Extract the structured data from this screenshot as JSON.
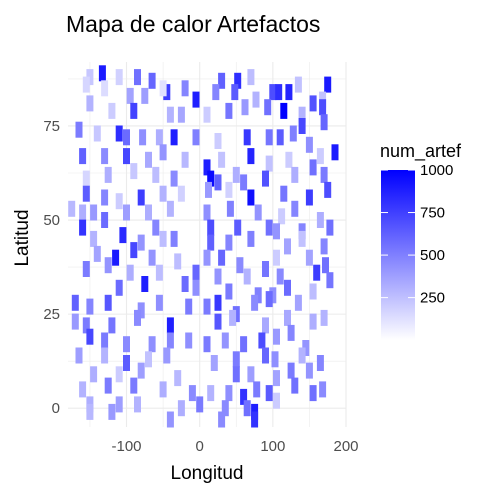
{
  "chart_data": {
    "type": "heatmap",
    "title": "Mapa de calor Artefactos",
    "xlabel": "Longitud",
    "ylabel": "Latitud",
    "xlim": [
      -180,
      200
    ],
    "ylim": [
      -5,
      92
    ],
    "xticks": [
      -100,
      0,
      100,
      200
    ],
    "yticks": [
      0,
      25,
      50,
      75
    ],
    "xtick_labels": [
      "-100",
      "0",
      "100",
      "200"
    ],
    "ytick_labels": [
      "0",
      "25",
      "50",
      "75"
    ],
    "grid": true,
    "legend": {
      "title": "num_artef",
      "position": "right",
      "min": 1,
      "max": 1000,
      "ticks": [
        250,
        500,
        750,
        1000
      ],
      "tick_labels": [
        "250",
        "500",
        "750",
        "1000"
      ],
      "low_color": "#ffffff",
      "high_color": "#0000ff"
    },
    "points": [
      [
        -150,
        88,
        220
      ],
      [
        -133,
        89,
        900
      ],
      [
        -110,
        88,
        180
      ],
      [
        -85,
        88,
        560
      ],
      [
        -65,
        87,
        600
      ],
      [
        -45,
        84,
        760
      ],
      [
        30,
        87,
        620
      ],
      [
        52,
        87,
        820
      ],
      [
        70,
        88,
        260
      ],
      [
        100,
        84,
        700
      ],
      [
        135,
        86,
        240
      ],
      [
        175,
        86,
        900
      ],
      [
        -155,
        86,
        160
      ],
      [
        -130,
        85,
        140
      ],
      [
        -95,
        83,
        360
      ],
      [
        -75,
        83,
        380
      ],
      [
        -50,
        85,
        120
      ],
      [
        -20,
        85,
        480
      ],
      [
        -5,
        82,
        880
      ],
      [
        22,
        84,
        480
      ],
      [
        48,
        84,
        640
      ],
      [
        77,
        82,
        300
      ],
      [
        93,
        80,
        560
      ],
      [
        108,
        84,
        820
      ],
      [
        122,
        84,
        860
      ],
      [
        155,
        81,
        680
      ],
      [
        168,
        82,
        240
      ],
      [
        168,
        80,
        700
      ],
      [
        -150,
        81,
        300
      ],
      [
        -120,
        79,
        200
      ],
      [
        -90,
        79,
        740
      ],
      [
        -40,
        78,
        300
      ],
      [
        -25,
        78,
        350
      ],
      [
        10,
        78,
        200
      ],
      [
        40,
        79,
        540
      ],
      [
        62,
        80,
        400
      ],
      [
        115,
        79,
        1000
      ],
      [
        140,
        78,
        300
      ],
      [
        170,
        76,
        600
      ],
      [
        140,
        75,
        720
      ],
      [
        -165,
        74,
        520
      ],
      [
        -140,
        73,
        220
      ],
      [
        -110,
        73,
        820
      ],
      [
        -100,
        72,
        580
      ],
      [
        -78,
        72,
        440
      ],
      [
        -55,
        72,
        320
      ],
      [
        -35,
        72,
        880
      ],
      [
        -5,
        72,
        500
      ],
      [
        25,
        71,
        200
      ],
      [
        65,
        72,
        780
      ],
      [
        95,
        72,
        540
      ],
      [
        110,
        72,
        640
      ],
      [
        128,
        73,
        500
      ],
      [
        150,
        70,
        440
      ],
      [
        185,
        68,
        900
      ],
      [
        -160,
        67,
        620
      ],
      [
        -130,
        67,
        460
      ],
      [
        -100,
        67,
        720
      ],
      [
        -70,
        66,
        340
      ],
      [
        -50,
        68,
        420
      ],
      [
        -20,
        66,
        280
      ],
      [
        10,
        64,
        880
      ],
      [
        30,
        66,
        240
      ],
      [
        70,
        67,
        860
      ],
      [
        95,
        65,
        240
      ],
      [
        122,
        66,
        200
      ],
      [
        155,
        64,
        560
      ],
      [
        165,
        67,
        200
      ],
      [
        -155,
        61,
        160
      ],
      [
        -125,
        62,
        320
      ],
      [
        -90,
        63,
        220
      ],
      [
        -60,
        62,
        260
      ],
      [
        -35,
        61,
        460
      ],
      [
        15,
        61,
        960
      ],
      [
        25,
        60,
        620
      ],
      [
        50,
        62,
        320
      ],
      [
        60,
        60,
        520
      ],
      [
        90,
        61,
        680
      ],
      [
        130,
        62,
        320
      ],
      [
        170,
        62,
        520
      ],
      [
        -155,
        57,
        640
      ],
      [
        -130,
        56,
        480
      ],
      [
        -110,
        55,
        200
      ],
      [
        -80,
        56,
        760
      ],
      [
        -50,
        57,
        300
      ],
      [
        -25,
        57,
        180
      ],
      [
        12,
        58,
        400
      ],
      [
        40,
        58,
        180
      ],
      [
        70,
        56,
        940
      ],
      [
        115,
        57,
        540
      ],
      [
        150,
        56,
        760
      ],
      [
        175,
        58,
        700
      ],
      [
        -175,
        53,
        280
      ],
      [
        -160,
        52,
        320
      ],
      [
        -145,
        52,
        400
      ],
      [
        -100,
        52,
        380
      ],
      [
        -70,
        52,
        320
      ],
      [
        -40,
        53,
        300
      ],
      [
        10,
        52,
        440
      ],
      [
        42,
        53,
        500
      ],
      [
        80,
        52,
        420
      ],
      [
        112,
        51,
        200
      ],
      [
        130,
        53,
        480
      ],
      [
        165,
        50,
        320
      ],
      [
        -160,
        48,
        800
      ],
      [
        -130,
        50,
        580
      ],
      [
        -60,
        48,
        480
      ],
      [
        15,
        48,
        700
      ],
      [
        52,
        48,
        640
      ],
      [
        95,
        48,
        560
      ],
      [
        105,
        47,
        420
      ],
      [
        140,
        47,
        480
      ],
      [
        178,
        48,
        560
      ],
      [
        -145,
        45,
        300
      ],
      [
        -105,
        46,
        840
      ],
      [
        -80,
        44,
        420
      ],
      [
        -50,
        45,
        260
      ],
      [
        -35,
        45,
        500
      ],
      [
        15,
        44,
        620
      ],
      [
        40,
        44,
        480
      ],
      [
        70,
        45,
        500
      ],
      [
        120,
        43,
        360
      ],
      [
        140,
        45,
        240
      ],
      [
        170,
        43,
        480
      ],
      [
        -140,
        41,
        360
      ],
      [
        -115,
        40,
        900
      ],
      [
        -90,
        42,
        720
      ],
      [
        -65,
        40,
        420
      ],
      [
        -30,
        39,
        260
      ],
      [
        10,
        40,
        420
      ],
      [
        30,
        40,
        600
      ],
      [
        55,
        38,
        460
      ],
      [
        105,
        40,
        200
      ],
      [
        150,
        40,
        360
      ],
      [
        172,
        38,
        560
      ],
      [
        -155,
        37,
        520
      ],
      [
        -125,
        38,
        420
      ],
      [
        -95,
        36,
        320
      ],
      [
        -55,
        36,
        260
      ],
      [
        -5,
        36,
        600
      ],
      [
        25,
        35,
        420
      ],
      [
        65,
        35,
        300
      ],
      [
        90,
        37,
        540
      ],
      [
        110,
        35,
        460
      ],
      [
        160,
        36,
        760
      ],
      [
        178,
        34,
        540
      ],
      [
        -110,
        32,
        580
      ],
      [
        -75,
        33,
        880
      ],
      [
        -20,
        33,
        580
      ],
      [
        -5,
        32,
        440
      ],
      [
        40,
        31,
        520
      ],
      [
        80,
        30,
        500
      ],
      [
        100,
        30,
        440
      ],
      [
        120,
        32,
        580
      ],
      [
        155,
        31,
        260
      ],
      [
        -170,
        28,
        620
      ],
      [
        -150,
        27,
        480
      ],
      [
        -125,
        28,
        660
      ],
      [
        -80,
        26,
        440
      ],
      [
        -55,
        28,
        440
      ],
      [
        -15,
        27,
        520
      ],
      [
        10,
        27,
        520
      ],
      [
        25,
        28,
        780
      ],
      [
        50,
        25,
        560
      ],
      [
        75,
        28,
        460
      ],
      [
        95,
        29,
        580
      ],
      [
        135,
        28,
        360
      ],
      [
        -170,
        23,
        400
      ],
      [
        -155,
        22,
        520
      ],
      [
        -120,
        22,
        540
      ],
      [
        -85,
        24,
        460
      ],
      [
        -40,
        22,
        880
      ],
      [
        25,
        23,
        660
      ],
      [
        45,
        24,
        300
      ],
      [
        90,
        22,
        340
      ],
      [
        120,
        24,
        340
      ],
      [
        155,
        23,
        320
      ],
      [
        170,
        24,
        300
      ],
      [
        -150,
        19,
        720
      ],
      [
        -130,
        18,
        520
      ],
      [
        -100,
        17,
        460
      ],
      [
        -65,
        17,
        440
      ],
      [
        -40,
        18,
        480
      ],
      [
        -15,
        18,
        440
      ],
      [
        10,
        17,
        520
      ],
      [
        35,
        18,
        420
      ],
      [
        60,
        17,
        560
      ],
      [
        85,
        18,
        700
      ],
      [
        105,
        19,
        400
      ],
      [
        125,
        20,
        480
      ],
      [
        145,
        16,
        420
      ],
      [
        -165,
        14,
        380
      ],
      [
        -130,
        14,
        300
      ],
      [
        -100,
        12,
        640
      ],
      [
        -70,
        13,
        240
      ],
      [
        -45,
        14,
        400
      ],
      [
        20,
        12,
        360
      ],
      [
        50,
        13,
        520
      ],
      [
        90,
        14,
        600
      ],
      [
        103,
        13,
        440
      ],
      [
        140,
        14,
        300
      ],
      [
        165,
        12,
        480
      ],
      [
        -145,
        9,
        320
      ],
      [
        -110,
        9,
        200
      ],
      [
        -80,
        10,
        380
      ],
      [
        -30,
        8,
        280
      ],
      [
        50,
        9,
        560
      ],
      [
        70,
        9,
        380
      ],
      [
        105,
        8,
        360
      ],
      [
        125,
        10,
        520
      ],
      [
        150,
        10,
        420
      ],
      [
        -160,
        5,
        300
      ],
      [
        -125,
        6,
        520
      ],
      [
        -90,
        6,
        520
      ],
      [
        -50,
        5,
        320
      ],
      [
        -10,
        4,
        460
      ],
      [
        15,
        4,
        300
      ],
      [
        40,
        4,
        440
      ],
      [
        60,
        3,
        800
      ],
      [
        78,
        5,
        520
      ],
      [
        95,
        4,
        640
      ],
      [
        130,
        6,
        560
      ],
      [
        155,
        4,
        560
      ],
      [
        168,
        5,
        460
      ],
      [
        -150,
        1,
        320
      ],
      [
        -110,
        1,
        380
      ],
      [
        -85,
        1,
        300
      ],
      [
        -25,
        0,
        320
      ],
      [
        0,
        1,
        520
      ],
      [
        35,
        0,
        460
      ],
      [
        65,
        0,
        560
      ],
      [
        75,
        -1,
        880
      ],
      [
        105,
        2,
        200
      ],
      [
        -150,
        -1,
        280
      ],
      [
        -120,
        -1,
        400
      ],
      [
        -40,
        -3,
        420
      ],
      [
        30,
        -3,
        460
      ],
      [
        75,
        -3,
        800
      ]
    ]
  }
}
